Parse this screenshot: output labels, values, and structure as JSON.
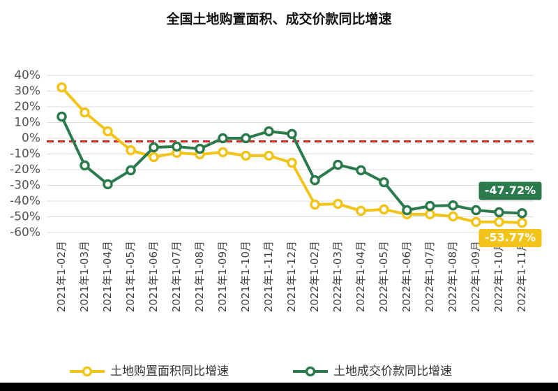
{
  "chart_data": {
    "type": "line",
    "title": "全国土地购置面积、成交价款同比增速",
    "categories": [
      "2021年1-02月",
      "2021年1-03月",
      "2021年1-04月",
      "2021年1-05月",
      "2021年1-06月",
      "2021年1-07月",
      "2021年1-08月",
      "2021年1-09月",
      "2021年1-10月",
      "2021年1-11月",
      "2021年1-12月",
      "2022年1-02月",
      "2022年1-03月",
      "2022年1-04月",
      "2022年1-05月",
      "2022年1-06月",
      "2022年1-07月",
      "2022年1-08月",
      "2022年1-09月",
      "2022年1-10月",
      "2022年1-11月"
    ],
    "series": [
      {
        "name": "土地购置面积同比增速",
        "color": "#f2c318",
        "values": [
          32.4,
          16.4,
          4.4,
          -7.6,
          -12,
          -9.3,
          -10.2,
          -8.9,
          -11.1,
          -11.1,
          -15.6,
          -42.2,
          -41.8,
          -46.2,
          -45.3,
          -48.4,
          -48.4,
          -49.8,
          -53.3,
          -53.3,
          -53.77
        ],
        "value_labels": [
          null,
          null,
          null,
          null,
          null,
          null,
          null,
          null,
          null,
          null,
          null,
          null,
          null,
          null,
          null,
          null,
          null,
          null,
          null,
          null,
          "-53.77%"
        ]
      },
      {
        "name": "土地成交价款同比增速",
        "color": "#2b7a4b",
        "values": [
          13.8,
          -17.3,
          -29.3,
          -20.4,
          -5.8,
          -5.3,
          -6.7,
          0,
          0,
          4.4,
          2.7,
          -26.7,
          -16.9,
          -20.4,
          -28,
          -45.8,
          -43.1,
          -42.7,
          -45.8,
          -47.1,
          -47.72
        ],
        "value_labels": [
          null,
          null,
          null,
          null,
          null,
          null,
          null,
          null,
          null,
          null,
          null,
          null,
          null,
          null,
          null,
          null,
          null,
          null,
          null,
          null,
          "-47.72%"
        ]
      }
    ],
    "reference_line": {
      "value": -2,
      "color": "#d62828"
    },
    "ylim": [
      -60,
      40
    ],
    "yticks": [
      {
        "value": 40,
        "label": "40%"
      },
      {
        "value": 30,
        "label": "30%"
      },
      {
        "value": 20,
        "label": "20%"
      },
      {
        "value": 10,
        "label": "10%"
      },
      {
        "value": 0,
        "label": "0%"
      },
      {
        "value": -10,
        "label": "-10%"
      },
      {
        "value": -20,
        "label": "-20%"
      },
      {
        "value": -30,
        "label": "-30%"
      },
      {
        "value": -40,
        "label": "-40%"
      },
      {
        "value": -50,
        "label": "-50%"
      },
      {
        "value": -60,
        "label": "-60%"
      }
    ],
    "grid": true
  }
}
